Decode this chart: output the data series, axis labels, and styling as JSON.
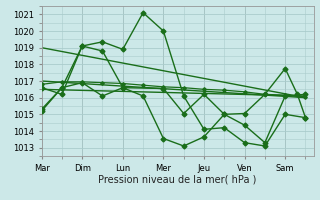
{
  "xlabel": "Pression niveau de la mer( hPa )",
  "background_color": "#cce8e8",
  "grid_color": "#aacccc",
  "line_color": "#1a6e1a",
  "x_ticks_labels": [
    "Mar",
    "Dim",
    "Lun",
    "Mer",
    "Jeu",
    "Ven",
    "Sam"
  ],
  "ylim": [
    1012.5,
    1021.5
  ],
  "yticks": [
    1013,
    1014,
    1015,
    1016,
    1017,
    1018,
    1019,
    1020,
    1021
  ],
  "series": [
    {
      "x": [
        0.0,
        0.5,
        1.0,
        1.5,
        2.0,
        2.5,
        3.0,
        3.5,
        4.0,
        4.5,
        5.0,
        5.5,
        6.0,
        6.5
      ],
      "y": [
        1015.3,
        1016.6,
        1019.1,
        1019.35,
        1018.9,
        1021.1,
        1020.0,
        1016.1,
        1014.1,
        1014.2,
        1013.3,
        1013.1,
        1015.0,
        1014.8
      ],
      "marker": "D",
      "markersize": 2.5,
      "linewidth": 1.0
    },
    {
      "x": [
        0.0,
        6.5
      ],
      "y": [
        1019.0,
        1016.0
      ],
      "marker": null,
      "linewidth": 1.0
    },
    {
      "x": [
        0.0,
        6.5
      ],
      "y": [
        1017.0,
        1016.0
      ],
      "marker": null,
      "linewidth": 1.0
    },
    {
      "x": [
        0.0,
        6.5
      ],
      "y": [
        1016.5,
        1016.1
      ],
      "marker": null,
      "linewidth": 1.0
    },
    {
      "x": [
        0.0,
        0.5,
        1.0,
        1.5,
        2.0,
        2.5,
        3.0,
        3.5,
        4.0,
        4.5,
        5.0,
        5.5,
        6.0,
        6.5
      ],
      "y": [
        1016.6,
        1016.2,
        1019.1,
        1018.8,
        1016.6,
        1016.1,
        1013.55,
        1013.1,
        1013.65,
        1015.0,
        1014.35,
        1013.3,
        1016.1,
        1016.2
      ],
      "marker": "D",
      "markersize": 2.5,
      "linewidth": 1.0
    },
    {
      "x": [
        0.0,
        0.5,
        1.0,
        1.5,
        2.0,
        2.5,
        3.0,
        3.5,
        4.0,
        4.5,
        5.0,
        5.5,
        6.0,
        6.5
      ],
      "y": [
        1016.8,
        1016.95,
        1016.95,
        1016.9,
        1016.85,
        1016.75,
        1016.65,
        1016.6,
        1016.5,
        1016.45,
        1016.35,
        1016.2,
        1016.15,
        1016.05
      ],
      "marker": "D",
      "markersize": 1.8,
      "linewidth": 0.9
    },
    {
      "x": [
        0.0,
        0.5,
        1.0,
        1.5,
        2.0,
        3.0,
        3.5,
        4.0,
        4.5,
        5.0,
        5.5,
        6.0,
        6.3,
        6.5
      ],
      "y": [
        1015.2,
        1016.6,
        1016.9,
        1016.1,
        1016.6,
        1016.55,
        1015.05,
        1016.2,
        1015.0,
        1015.05,
        1016.2,
        1017.75,
        1016.2,
        1014.8
      ],
      "marker": "D",
      "markersize": 2.5,
      "linewidth": 1.0
    }
  ],
  "x_day_positions": [
    0,
    1,
    2,
    3,
    4,
    5,
    6
  ],
  "plot_xlim": [
    0.0,
    6.7
  ]
}
